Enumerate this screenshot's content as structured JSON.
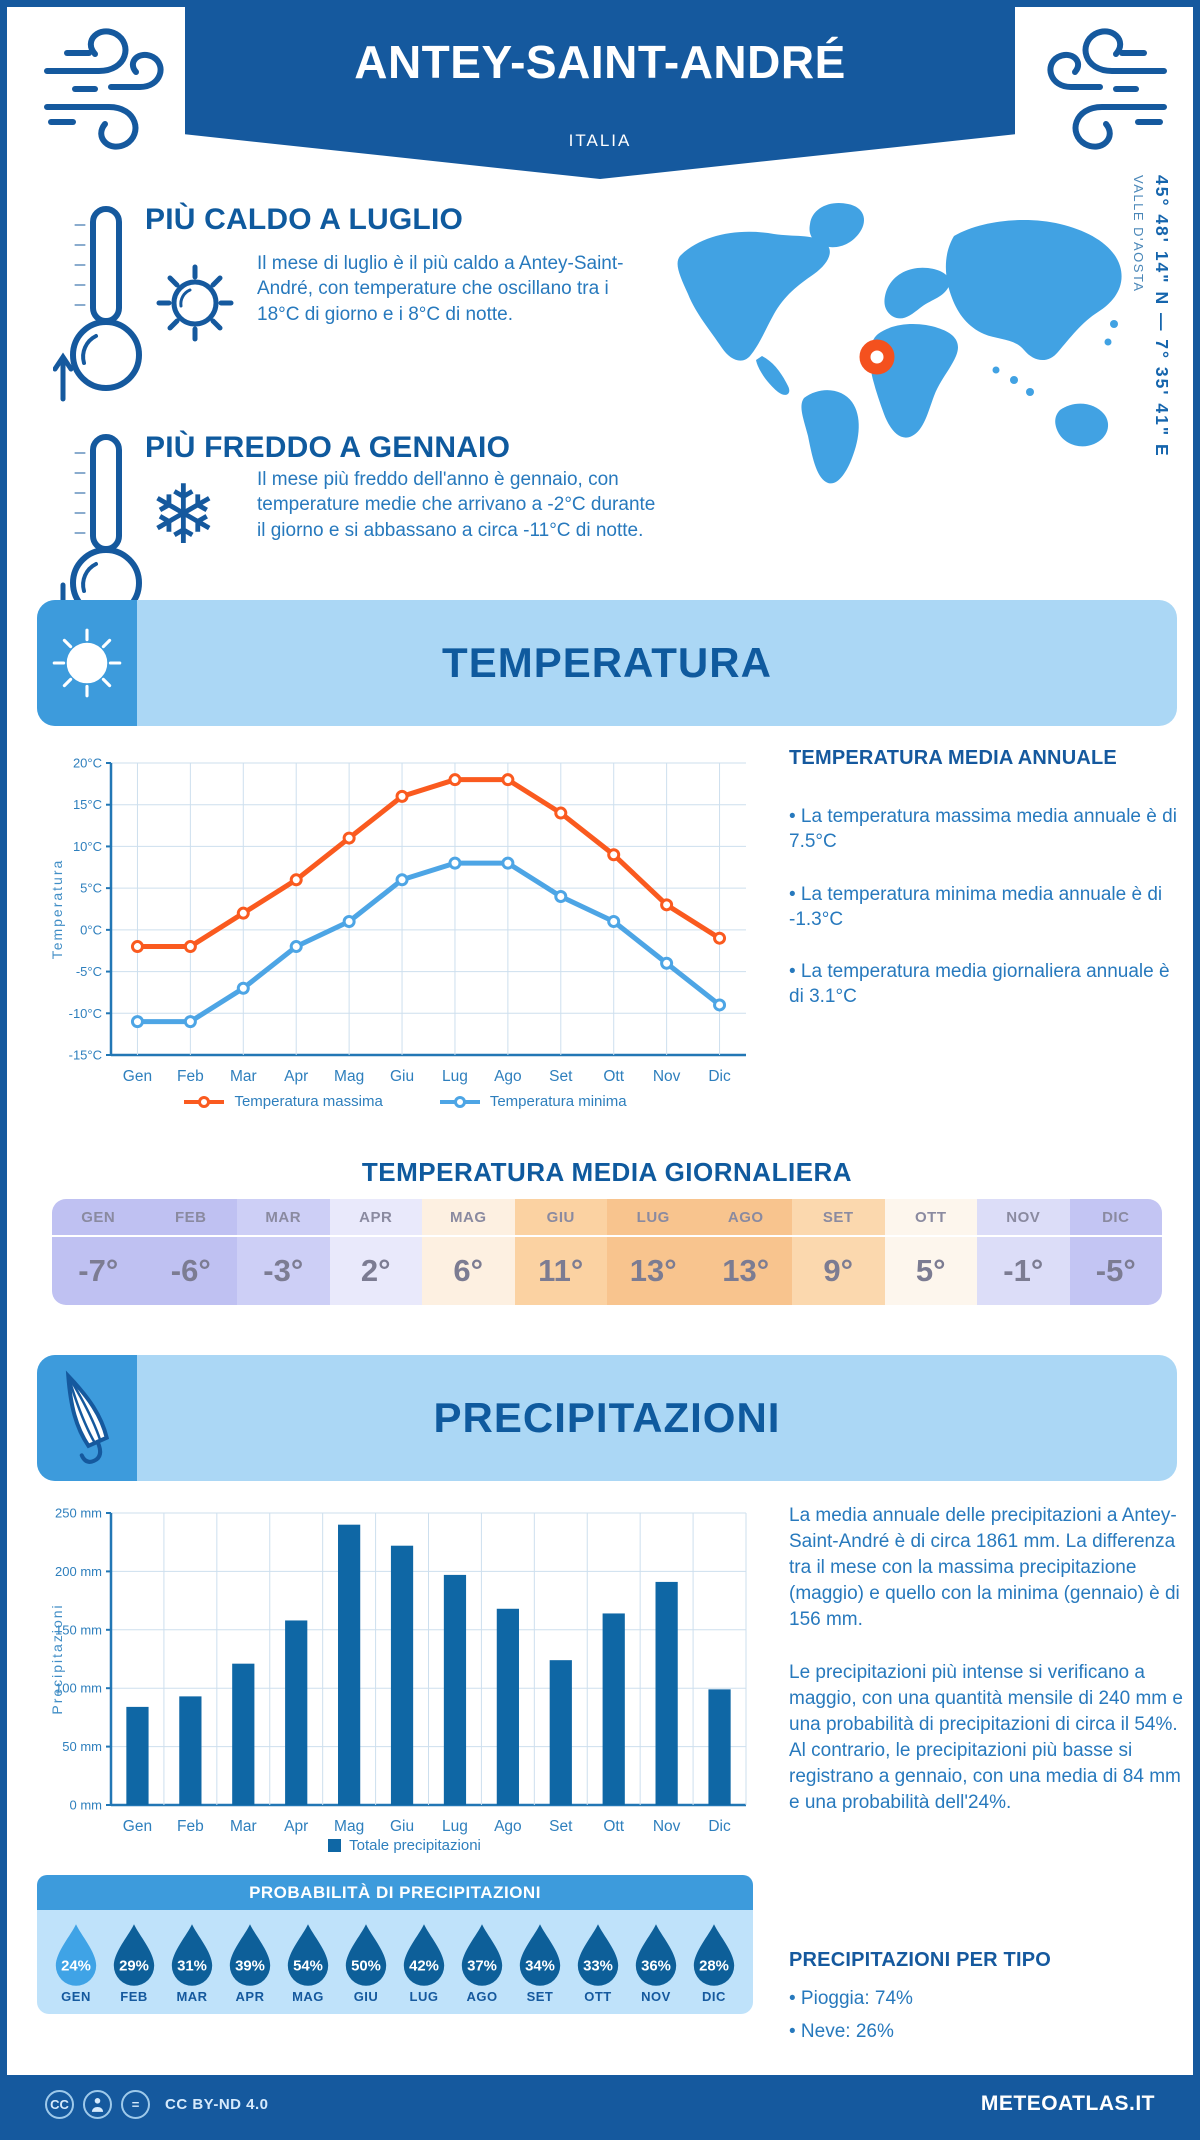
{
  "header": {
    "title": "ANTEY-SAINT-ANDRÉ",
    "subtitle": "ITALIA"
  },
  "highlights": {
    "hot": {
      "title": "PIÙ CALDO A LUGLIO",
      "text": "Il mese di luglio è il più caldo a Antey-Saint-André, con temperature che oscillano tra i 18°C di giorno e i 8°C di notte."
    },
    "cold": {
      "title": "PIÙ FREDDO A GENNAIO",
      "text": "Il mese più freddo dell'anno è gennaio, con temperature medie che arrivano a -2°C durante il giorno e si abbassano a circa -11°C di notte."
    }
  },
  "map": {
    "coordinates": "45° 48' 14\" N — 7° 35' 41\" E",
    "region": "VALLE D'AOSTA"
  },
  "temperature": {
    "section_title": "TEMPERATURA",
    "annual_title": "TEMPERATURA MEDIA ANNUALE",
    "annual_bullets": [
      "• La temperatura massima media annuale è di 7.5°C",
      "• La temperatura minima media annuale è di -1.3°C",
      "• La temperatura media giornaliera annuale è di 3.1°C"
    ],
    "daily_title": "TEMPERATURA MEDIA GIORNALIERA",
    "daily_months": [
      "GEN",
      "FEB",
      "MAR",
      "APR",
      "MAG",
      "GIU",
      "LUG",
      "AGO",
      "SET",
      "OTT",
      "NOV",
      "DIC"
    ],
    "daily_values": [
      "-7°",
      "-6°",
      "-3°",
      "2°",
      "6°",
      "11°",
      "13°",
      "13°",
      "9°",
      "5°",
      "-1°",
      "-5°"
    ],
    "daily_colors": [
      "#bfc1f2",
      "#bfc1f2",
      "#cdcff6",
      "#e9e9fb",
      "#fdf0e1",
      "#fbd2a2",
      "#f8c48e",
      "#f8c48e",
      "#fbd8ae",
      "#fdf6ed",
      "#dcddf8",
      "#c3c5f3"
    ]
  },
  "precipitation": {
    "section_title": "PRECIPITAZIONI",
    "summary_1": "La media annuale delle precipitazioni a Antey-Saint-André è di circa 1861 mm. La differenza tra il mese con la massima precipitazione (maggio) e quello con la minima (gennaio) è di 156 mm.",
    "summary_2": "Le precipitazioni più intense si verificano a maggio, con una quantità mensile di 240 mm e una probabilità di precipitazioni di circa il 54%. Al contrario, le precipitazioni più basse si registrano a gennaio, con una media di 84 mm e una probabilità dell'24%.",
    "probability_title": "PROBABILITÀ DI PRECIPITAZIONI",
    "probability_months": [
      "GEN",
      "FEB",
      "MAR",
      "APR",
      "MAG",
      "GIU",
      "LUG",
      "AGO",
      "SET",
      "OTT",
      "NOV",
      "DIC"
    ],
    "probability_values": [
      "24%",
      "29%",
      "31%",
      "39%",
      "54%",
      "50%",
      "42%",
      "37%",
      "34%",
      "33%",
      "36%",
      "28%"
    ],
    "by_type_title": "PRECIPITAZIONI PER TIPO",
    "by_type_bullets": [
      "• Pioggia: 74%",
      "• Neve: 26%"
    ]
  },
  "footer": {
    "license": "CC BY-ND 4.0",
    "site": "METEOATLAS.IT"
  },
  "colors": {
    "dark_blue": "#15599e",
    "mid_blue": "#3d9bdc",
    "map_blue": "#41a2e3",
    "panel_light": "#abd7f5",
    "prob_panel": "#bfe2fa",
    "text_blue": "#2779bd",
    "orange_line": "#fa5a1f",
    "light_blue_line": "#4da5e5",
    "bar_blue": "#0f67a5",
    "drop_dark": "#0d5f99",
    "drop_light": "#3fa3e6",
    "marker_orange": "#f4511e"
  },
  "chart_data": [
    {
      "type": "line",
      "title": "Temperatura",
      "x": [
        "Gen",
        "Feb",
        "Mar",
        "Apr",
        "Mag",
        "Giu",
        "Lug",
        "Ago",
        "Set",
        "Ott",
        "Nov",
        "Dic"
      ],
      "ylabel": "Temperatura",
      "ylim": [
        -15,
        20
      ],
      "yticks": [
        20,
        15,
        10,
        5,
        0,
        -5,
        -10,
        -15
      ],
      "ytick_suffix": "°C",
      "grid": true,
      "legend_position": "bottom",
      "series": [
        {
          "name": "Temperatura massima",
          "color": "#fa5a1f",
          "values": [
            -2,
            -2,
            2,
            6,
            11,
            16,
            18,
            18,
            14,
            9,
            3,
            -1
          ]
        },
        {
          "name": "Temperatura minima",
          "color": "#4da5e5",
          "values": [
            -11,
            -11,
            -7,
            -2,
            1,
            6,
            8,
            8,
            4,
            1,
            -4,
            -9
          ]
        }
      ]
    },
    {
      "type": "bar",
      "title": "Precipitazioni",
      "categories": [
        "Gen",
        "Feb",
        "Mar",
        "Apr",
        "Mag",
        "Giu",
        "Lug",
        "Ago",
        "Set",
        "Ott",
        "Nov",
        "Dic"
      ],
      "values": [
        84,
        93,
        121,
        158,
        240,
        222,
        197,
        168,
        124,
        164,
        191,
        99
      ],
      "series_name": "Totale precipitazioni",
      "color": "#0f67a5",
      "ylabel": "Precipitazioni",
      "ylim": [
        0,
        250
      ],
      "yticks": [
        0,
        50,
        100,
        150,
        200,
        250
      ],
      "ytick_suffix": " mm",
      "grid": true,
      "legend_position": "bottom",
      "annual_total_mm": 1861
    }
  ]
}
